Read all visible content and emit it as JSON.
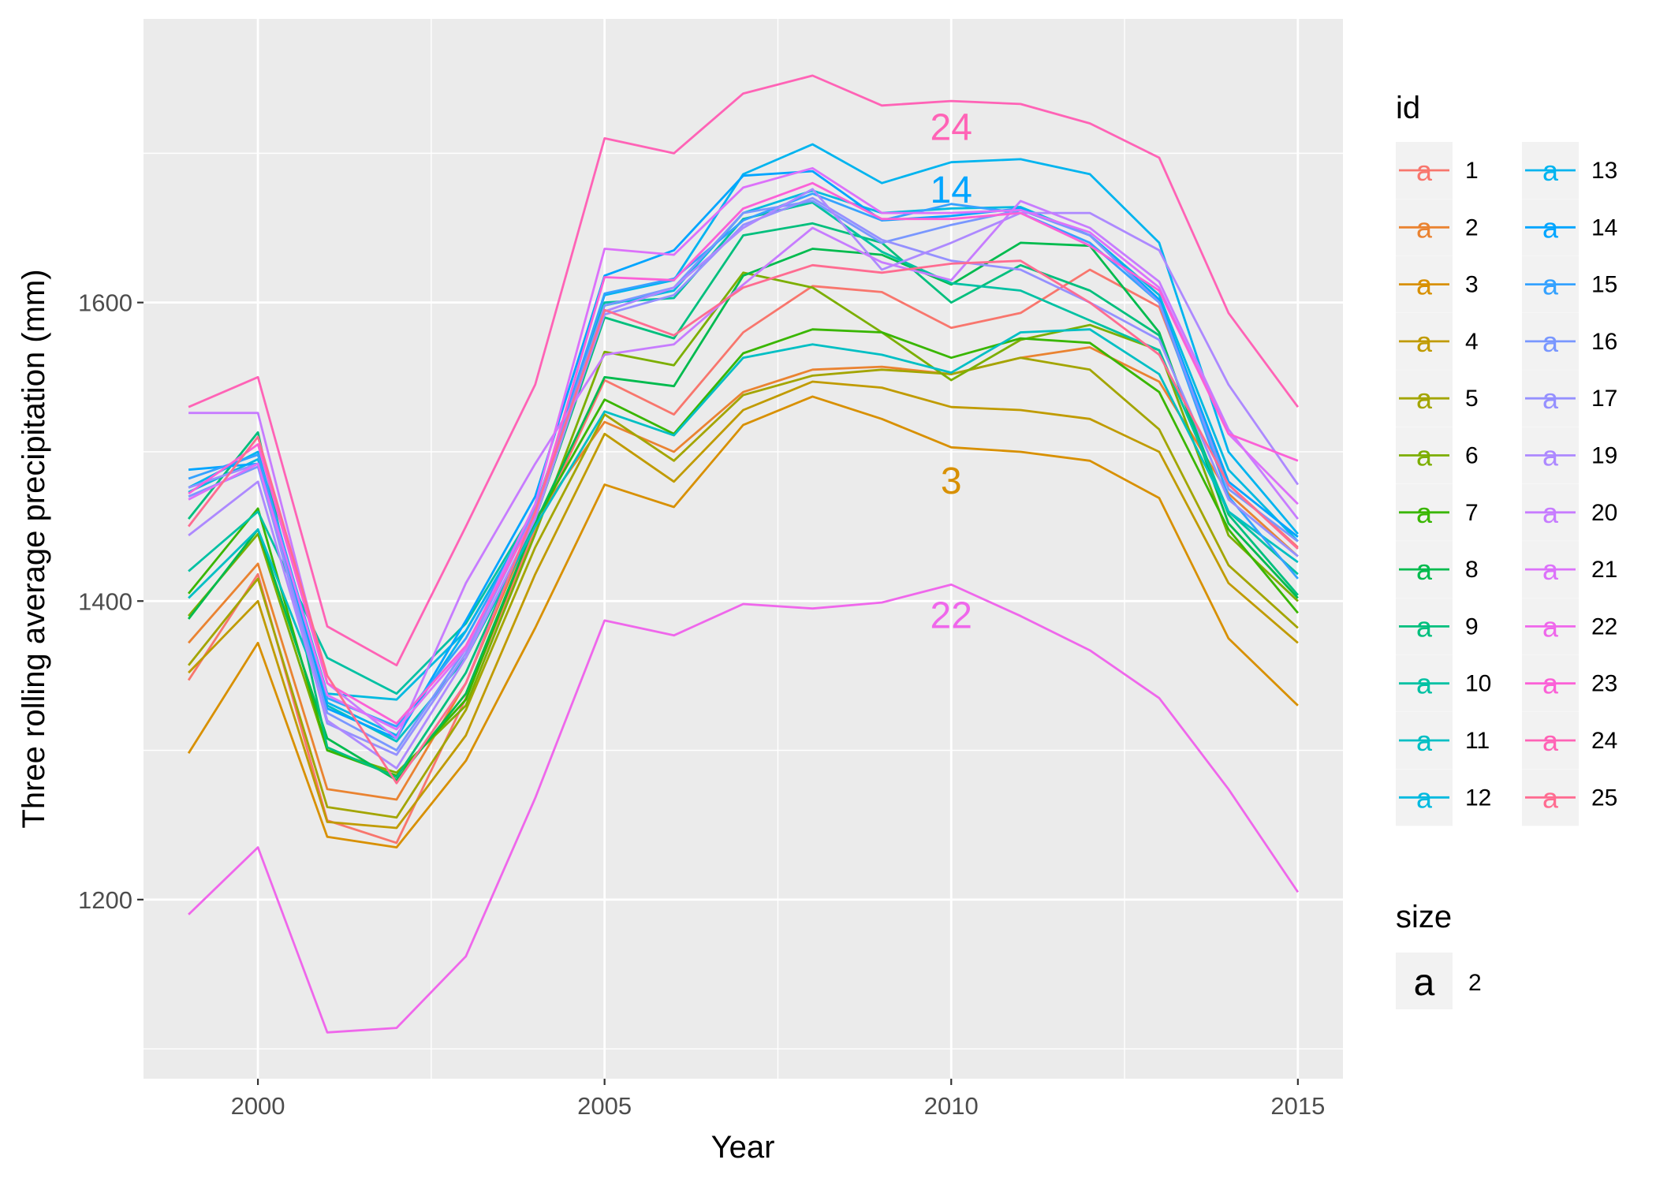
{
  "chart_data": {
    "type": "line",
    "title": "",
    "xlabel": "Year",
    "ylabel": "Three rolling average precipitation (mm)",
    "xlim": [
      1998.35,
      2015.65
    ],
    "ylim": [
      1080,
      1790
    ],
    "x_ticks": [
      2000,
      2005,
      2010,
      2015
    ],
    "x_tick_labels": [
      "2000",
      "2005",
      "2010",
      "2015"
    ],
    "y_ticks": [
      1200,
      1400,
      1600
    ],
    "y_tick_labels": [
      "1200",
      "1400",
      "1600"
    ],
    "y_minor_ticks": [
      1100,
      1300,
      1500,
      1700
    ],
    "x": [
      1999,
      2000,
      2001,
      2002,
      2003,
      2004,
      2005,
      2006,
      2007,
      2008,
      2009,
      2010,
      2011,
      2012,
      2013,
      2014,
      2015
    ],
    "series": [
      {
        "name": "1",
        "color": "#F8766D",
        "values": [
          1347,
          1418,
          1253,
          1238,
          1335,
          1448,
          1548,
          1525,
          1580,
          1611,
          1607,
          1583,
          1593,
          1622,
          1597,
          1478,
          1436
        ]
      },
      {
        "name": "2",
        "color": "#EA8331",
        "values": [
          1372,
          1425,
          1274,
          1267,
          1345,
          1455,
          1520,
          1500,
          1540,
          1555,
          1557,
          1552,
          1563,
          1570,
          1547,
          1472,
          1430
        ]
      },
      {
        "name": "3",
        "color": "#D89000",
        "values": [
          1298,
          1372,
          1242,
          1235,
          1293,
          1382,
          1478,
          1463,
          1518,
          1537,
          1522,
          1503,
          1500,
          1494,
          1469,
          1375,
          1330
        ]
      },
      {
        "name": "4",
        "color": "#C09B00",
        "values": [
          1352,
          1400,
          1252,
          1248,
          1310,
          1418,
          1512,
          1480,
          1528,
          1547,
          1543,
          1530,
          1528,
          1522,
          1500,
          1412,
          1372
        ]
      },
      {
        "name": "5",
        "color": "#A3A500",
        "values": [
          1357,
          1415,
          1262,
          1255,
          1327,
          1436,
          1525,
          1494,
          1538,
          1551,
          1555,
          1552,
          1563,
          1555,
          1515,
          1424,
          1382
        ]
      },
      {
        "name": "6",
        "color": "#7CAE00",
        "values": [
          1390,
          1445,
          1300,
          1285,
          1330,
          1445,
          1567,
          1558,
          1620,
          1610,
          1580,
          1548,
          1575,
          1585,
          1568,
          1444,
          1400
        ]
      },
      {
        "name": "7",
        "color": "#39B600",
        "values": [
          1405,
          1462,
          1300,
          1283,
          1334,
          1453,
          1535,
          1512,
          1566,
          1582,
          1580,
          1563,
          1576,
          1573,
          1540,
          1448,
          1392
        ]
      },
      {
        "name": "8",
        "color": "#00BB4E",
        "values": [
          1388,
          1448,
          1308,
          1280,
          1338,
          1452,
          1550,
          1544,
          1618,
          1636,
          1632,
          1612,
          1640,
          1638,
          1580,
          1452,
          1402
        ]
      },
      {
        "name": "9",
        "color": "#00BF7D",
        "values": [
          1455,
          1513,
          1302,
          1282,
          1352,
          1455,
          1590,
          1576,
          1645,
          1653,
          1640,
          1600,
          1625,
          1608,
          1578,
          1458,
          1404
        ]
      },
      {
        "name": "10",
        "color": "#00C1A3",
        "values": [
          1420,
          1460,
          1362,
          1338,
          1385,
          1462,
          1600,
          1603,
          1656,
          1667,
          1634,
          1613,
          1608,
          1588,
          1568,
          1460,
          1418
        ]
      },
      {
        "name": "11",
        "color": "#00BFC4",
        "values": [
          1402,
          1448,
          1330,
          1306,
          1362,
          1450,
          1527,
          1511,
          1563,
          1572,
          1565,
          1553,
          1580,
          1582,
          1552,
          1460,
          1426
        ]
      },
      {
        "name": "12",
        "color": "#00BAE0",
        "values": [
          1473,
          1495,
          1338,
          1334,
          1380,
          1460,
          1598,
          1608,
          1660,
          1675,
          1660,
          1663,
          1664,
          1645,
          1605,
          1488,
          1440
        ]
      },
      {
        "name": "13",
        "color": "#00B4EF",
        "values": [
          1476,
          1500,
          1332,
          1310,
          1380,
          1460,
          1605,
          1615,
          1686,
          1706,
          1680,
          1694,
          1696,
          1686,
          1640,
          1500,
          1445
        ]
      },
      {
        "name": "14",
        "color": "#00A5FF",
        "values": [
          1488,
          1492,
          1328,
          1308,
          1387,
          1470,
          1618,
          1635,
          1685,
          1688,
          1655,
          1658,
          1663,
          1645,
          1602,
          1480,
          1443
        ]
      },
      {
        "name": "15",
        "color": "#35A2FF",
        "values": [
          1482,
          1498,
          1335,
          1316,
          1375,
          1460,
          1606,
          1616,
          1655,
          1673,
          1655,
          1666,
          1660,
          1640,
          1600,
          1470,
          1415
        ]
      },
      {
        "name": "16",
        "color": "#7997FF",
        "values": [
          1470,
          1490,
          1325,
          1300,
          1368,
          1462,
          1598,
          1610,
          1660,
          1668,
          1640,
          1652,
          1662,
          1645,
          1600,
          1475,
          1440
        ]
      },
      {
        "name": "17",
        "color": "#9590FF",
        "values": [
          1476,
          1492,
          1318,
          1297,
          1365,
          1460,
          1592,
          1605,
          1652,
          1670,
          1642,
          1628,
          1622,
          1600,
          1575,
          1468,
          1430
        ]
      },
      {
        "name": "19",
        "color": "#AD89FF",
        "values": [
          1444,
          1480,
          1320,
          1288,
          1362,
          1455,
          1594,
          1610,
          1650,
          1676,
          1622,
          1640,
          1660,
          1660,
          1635,
          1545,
          1478
        ]
      },
      {
        "name": "20",
        "color": "#C77CFF",
        "values": [
          1526,
          1526,
          1345,
          1308,
          1412,
          1492,
          1565,
          1572,
          1612,
          1650,
          1627,
          1615,
          1668,
          1650,
          1614,
          1515,
          1455
        ]
      },
      {
        "name": "21",
        "color": "#DC71FA",
        "values": [
          1468,
          1492,
          1337,
          1314,
          1368,
          1465,
          1636,
          1632,
          1677,
          1690,
          1660,
          1660,
          1662,
          1647,
          1610,
          1512,
          1465
        ]
      },
      {
        "name": "22",
        "color": "#EF67EB",
        "values": [
          1190,
          1235,
          1111,
          1114,
          1162,
          1268,
          1387,
          1377,
          1398,
          1395,
          1399,
          1411,
          1390,
          1367,
          1335,
          1274,
          1205
        ]
      },
      {
        "name": "23",
        "color": "#FB61D7",
        "values": [
          1472,
          1505,
          1345,
          1318,
          1370,
          1458,
          1617,
          1615,
          1663,
          1680,
          1656,
          1656,
          1660,
          1638,
          1608,
          1512,
          1494
        ]
      },
      {
        "name": "24",
        "color": "#FF63B6",
        "values": [
          1530,
          1550,
          1383,
          1357,
          1450,
          1545,
          1710,
          1700,
          1740,
          1752,
          1732,
          1735,
          1733,
          1720,
          1697,
          1593,
          1530
        ]
      },
      {
        "name": "25",
        "color": "#FF6C91",
        "values": [
          1450,
          1510,
          1350,
          1278,
          1345,
          1460,
          1595,
          1578,
          1610,
          1625,
          1620,
          1626,
          1628,
          1600,
          1565,
          1478,
          1435
        ]
      }
    ],
    "annotations": [
      {
        "text": "24",
        "x": 2010,
        "y": 1718,
        "color": "#FF63B6"
      },
      {
        "text": "14",
        "x": 2010,
        "y": 1676,
        "color": "#00A5FF"
      },
      {
        "text": "3",
        "x": 2010,
        "y": 1481,
        "color": "#D89000"
      },
      {
        "text": "22",
        "x": 2010,
        "y": 1391,
        "color": "#EF67EB"
      }
    ],
    "grid": true,
    "background": "#EBEBEB",
    "legend": {
      "position": "right",
      "color_title": "id",
      "size_title": "size",
      "size_entries": [
        "2"
      ],
      "key_glyph": "a"
    }
  }
}
